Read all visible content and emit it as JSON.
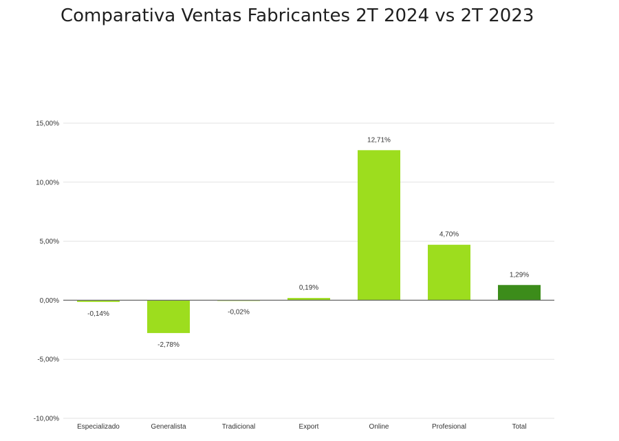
{
  "chart_data": {
    "type": "bar",
    "title": "Comparativa Ventas Fabricantes 2T 2024 vs 2T 2023",
    "categories": [
      "Especializado",
      "Generalista",
      "Tradicional",
      "Export",
      "Online",
      "Profesional",
      "Total"
    ],
    "values": [
      -0.14,
      -2.78,
      -0.02,
      0.19,
      12.71,
      4.7,
      1.29
    ],
    "data_labels": [
      "-0,14%",
      "-2,78%",
      "-0,02%",
      "0,19%",
      "12,71%",
      "4,70%",
      "1,29%"
    ],
    "yticks": [
      15,
      10,
      5,
      0,
      -5,
      -10
    ],
    "ytick_labels": [
      "15,00%",
      "10,00%",
      "5,00%",
      "0,00%",
      "-5,00%",
      "-10,00%"
    ],
    "ylim": [
      -10,
      15
    ],
    "grid": true,
    "legend": "none",
    "colors": {
      "bar": "#9ddd1e",
      "total_bar": "#3c8c1a",
      "grid": "#e2e2e2",
      "zero_line": "#666666"
    }
  }
}
